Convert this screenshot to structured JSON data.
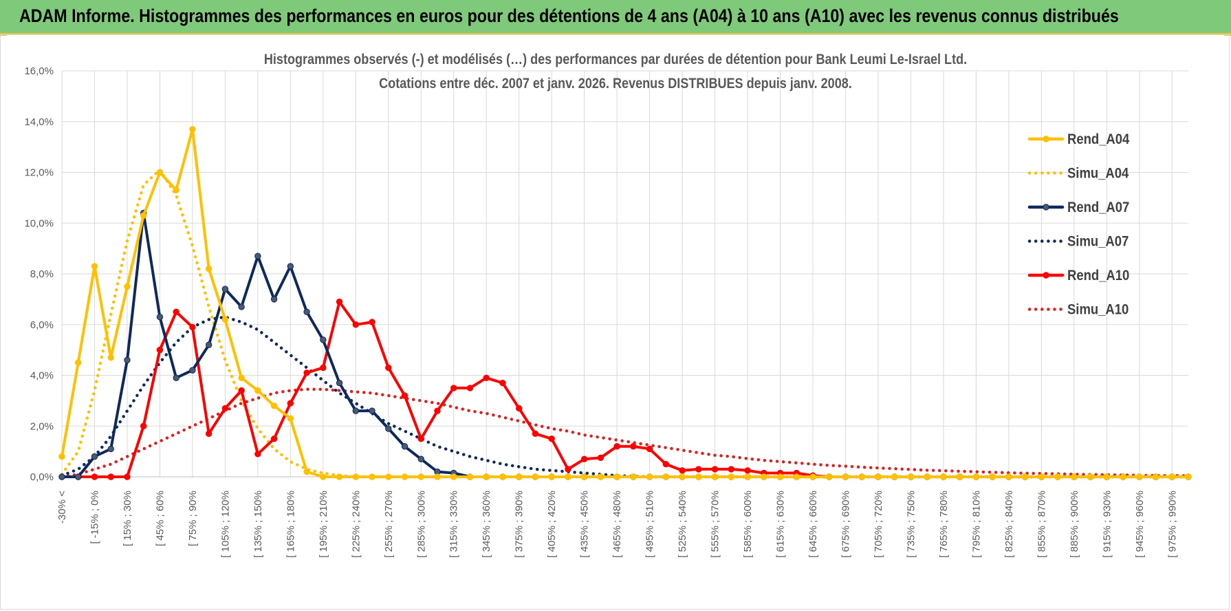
{
  "header": {
    "title": "ADAM Informe. Histogrammes des performances en euros pour des détentions de 4 ans (A04) à 10 ans (A10) avec les revenus connus distribués"
  },
  "chart_data": {
    "type": "line",
    "title_line1": "Histogrammes observés (-) et modélisés (…) des performances par durées de détention pour Bank Leumi Le-Israel Ltd.",
    "title_line2": "Cotations entre déc. 2007 et janv. 2026.  Revenus DISTRIBUES depuis janv. 2008.",
    "ylim": [
      0,
      16
    ],
    "y_ticks": [
      "0,0%",
      "2,0%",
      "4,0%",
      "6,0%",
      "8,0%",
      "10,0%",
      "12,0%",
      "14,0%",
      "16,0%"
    ],
    "x_tick_labels": [
      "-30% <",
      "[ -15% ; 0%",
      "[ 15% ; 30%",
      "[ 45% ; 60%",
      "[ 75% ; 90%",
      "[ 105% ; 120%",
      "[ 135% ; 150%",
      "[ 165% ; 180%",
      "[ 195% ; 210%",
      "[ 225% ; 240%",
      "[ 255% ; 270%",
      "[ 285% ; 300%",
      "[ 315% ; 330%",
      "[ 345% ; 360%",
      "[ 375% ; 390%",
      "[ 405% ; 420%",
      "[ 435% ; 450%",
      "[ 465% ; 480%",
      "[ 495% ; 510%",
      "[ 525% ; 540%",
      "[ 555% ; 570%",
      "[ 585% ; 600%",
      "[ 615% ; 630%",
      "[ 645% ; 660%",
      "[ 675% ; 690%",
      "[ 705% ; 720%",
      "[ 735% ; 750%",
      "[ 765% ; 780%",
      "[ 795% ; 810%",
      "[ 825% ; 840%",
      "[ 855% ; 870%",
      "[ 885% ; 900%",
      "[ 915% ; 930%",
      "[ 945% ; 960%",
      "[ 975% ; 990%"
    ],
    "n_bins": 70,
    "grid": true,
    "legend_position": "right",
    "series": [
      {
        "name": "Rend_A04",
        "style": "solid",
        "color": "#ffc000",
        "markers": true,
        "values": [
          0.8,
          4.5,
          8.3,
          4.7,
          7.5,
          10.3,
          12.0,
          11.3,
          13.7,
          8.2,
          6.2,
          3.9,
          3.4,
          2.8,
          2.3,
          0.2,
          0,
          0,
          0,
          0,
          0,
          0,
          0,
          0,
          0,
          0
        ]
      },
      {
        "name": "Simu_A04",
        "style": "dotted",
        "color": "#ffc000",
        "markers": false,
        "values": [
          0.1,
          1.0,
          3.4,
          6.4,
          9.3,
          11.5,
          12.1,
          11.1,
          9.1,
          6.7,
          4.6,
          3.0,
          1.9,
          1.1,
          0.6,
          0.3,
          0.15,
          0.05,
          0,
          0,
          0,
          0,
          0,
          0,
          0,
          0,
          0,
          0
        ]
      },
      {
        "name": "Rend_A07",
        "style": "solid",
        "color": "#0e2a5c",
        "markers": true,
        "values": [
          0,
          0,
          0.8,
          1.1,
          4.6,
          10.4,
          6.3,
          3.9,
          4.2,
          5.2,
          7.4,
          6.7,
          8.7,
          7.0,
          8.3,
          6.5,
          5.4,
          3.7,
          2.6,
          2.6,
          1.9,
          1.2,
          0.7,
          0.2,
          0.15,
          0,
          0,
          0,
          0,
          0,
          0,
          0,
          0,
          0,
          0,
          0,
          0,
          0,
          0,
          0,
          0,
          0,
          0,
          0,
          0,
          0,
          0,
          0,
          0,
          0
        ]
      },
      {
        "name": "Simu_A07",
        "style": "dotted",
        "color": "#0e2a5c",
        "markers": false,
        "values": [
          0.05,
          0.3,
          0.8,
          1.6,
          2.6,
          3.6,
          4.5,
          5.3,
          5.9,
          6.2,
          6.3,
          6.1,
          5.8,
          5.3,
          4.8,
          4.3,
          3.8,
          3.3,
          2.9,
          2.5,
          2.1,
          1.8,
          1.5,
          1.2,
          1.0,
          0.8,
          0.65,
          0.5,
          0.4,
          0.3,
          0.25,
          0.2,
          0.15,
          0.1,
          0.05,
          0.02,
          0,
          0,
          0,
          0,
          0,
          0,
          0,
          0,
          0,
          0,
          0,
          0,
          0,
          0
        ]
      },
      {
        "name": "Rend_A10",
        "style": "solid",
        "color": "#ff0000",
        "markers": true,
        "values": [
          0,
          0,
          0,
          0,
          0,
          2.0,
          5.0,
          6.5,
          5.9,
          1.7,
          2.7,
          3.4,
          0.9,
          1.5,
          2.9,
          4.1,
          4.3,
          6.9,
          6.0,
          6.1,
          4.3,
          3.2,
          1.5,
          2.6,
          3.5,
          3.5,
          3.9,
          3.7,
          2.7,
          1.7,
          1.5,
          0.3,
          0.7,
          0.75,
          1.2,
          1.2,
          1.1,
          0.5,
          0.25,
          0.3,
          0.3,
          0.3,
          0.25,
          0.15,
          0.15,
          0.15,
          0.05,
          0,
          0,
          0,
          0,
          0,
          0,
          0,
          0,
          0,
          0,
          0,
          0,
          0,
          0,
          0,
          0,
          0,
          0,
          0,
          0,
          0,
          0,
          0
        ]
      },
      {
        "name": "Simu_A10",
        "style": "dotted",
        "color": "#e02020",
        "markers": false,
        "values": [
          0,
          0.1,
          0.3,
          0.5,
          0.8,
          1.1,
          1.4,
          1.7,
          2.0,
          2.3,
          2.6,
          2.9,
          3.1,
          3.3,
          3.4,
          3.45,
          3.45,
          3.4,
          3.35,
          3.3,
          3.2,
          3.1,
          3.0,
          2.9,
          2.75,
          2.6,
          2.5,
          2.35,
          2.2,
          2.05,
          1.9,
          1.8,
          1.65,
          1.55,
          1.45,
          1.35,
          1.25,
          1.15,
          1.05,
          0.95,
          0.85,
          0.8,
          0.72,
          0.65,
          0.6,
          0.55,
          0.5,
          0.45,
          0.42,
          0.38,
          0.35,
          0.32,
          0.29,
          0.26,
          0.24,
          0.22,
          0.2,
          0.18,
          0.16,
          0.14,
          0.13,
          0.12,
          0.1,
          0.09,
          0.08,
          0.07,
          0.06,
          0.05,
          0.05,
          0.04
        ]
      }
    ]
  }
}
